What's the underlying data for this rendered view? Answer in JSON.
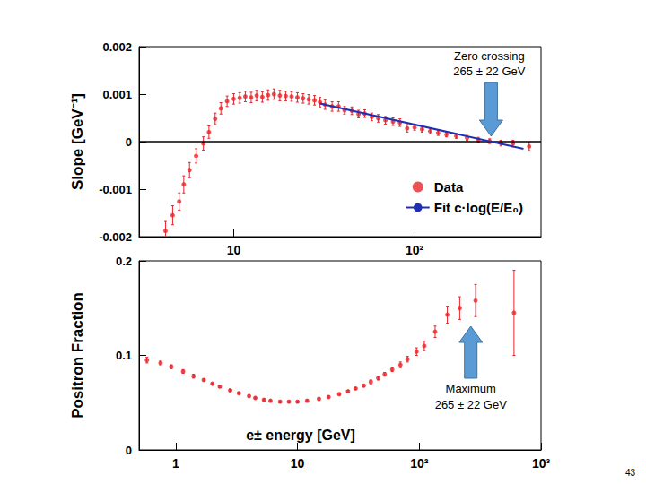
{
  "chart_data": [
    {
      "type": "scatter",
      "ylabel": "Slope [GeV⁻¹]",
      "log": "x",
      "grid": false,
      "legend": "lower right",
      "xlim": [
        3,
        500
      ],
      "xticks": [
        10,
        {
          "value": 100,
          "label": "10²"
        }
      ],
      "ylim": [
        -0.002,
        0.002
      ],
      "yticks": [
        -0.002,
        -0.001,
        0,
        0.001,
        0.002
      ],
      "hline": 0,
      "series": [
        {
          "name": "Data",
          "type": "scatter",
          "color": "#e8242a",
          "marker": "circle",
          "x": [
            4.2,
            4.6,
            5.0,
            5.3,
            5.7,
            6.2,
            6.8,
            7.3,
            7.9,
            8.5,
            9.2,
            10.0,
            10.8,
            11.6,
            12.5,
            13.4,
            14.4,
            15.5,
            16.7,
            18,
            19.4,
            20.9,
            22.5,
            24.2,
            26,
            28,
            30,
            32,
            35,
            38,
            41,
            45,
            49,
            53,
            58,
            63,
            69,
            76,
            83,
            91,
            100,
            110,
            122,
            135,
            150,
            170,
            195,
            225,
            260,
            300,
            350,
            430
          ],
          "values": [
            -0.00188,
            -0.00155,
            -0.00126,
            -0.0009,
            -0.0006,
            -0.0003,
            -4e-05,
            0.0002,
            0.00048,
            0.0007,
            0.00085,
            0.0009,
            0.00092,
            0.00095,
            0.00093,
            0.00097,
            0.00094,
            0.00098,
            0.001,
            0.00097,
            0.00096,
            0.00095,
            0.00093,
            0.00091,
            0.00089,
            0.00087,
            0.00083,
            0.00078,
            0.00074,
            0.00074,
            0.00066,
            0.00065,
            0.00058,
            0.00059,
            0.00052,
            0.00049,
            0.00045,
            0.00042,
            0.0004,
            0.00028,
            0.0003,
            0.00026,
            0.00022,
            0.00018,
            0.00015,
            0.00012,
            8e-05,
            4e-05,
            1e-05,
            -3e-05,
            -4e-05,
            -0.0001
          ],
          "errors": [
            0.0002,
            0.0002,
            0.00018,
            0.00018,
            0.00016,
            0.00015,
            0.00014,
            0.00013,
            0.00012,
            0.00012,
            0.00011,
            0.00011,
            0.00011,
            0.00011,
            0.00011,
            0.00011,
            0.00011,
            0.00011,
            0.00011,
            0.00011,
            0.0001,
            0.0001,
            0.0001,
            0.0001,
            0.0001,
            0.0001,
            0.0001,
            0.0001,
            0.0001,
            0.0001,
            8e-05,
            8e-05,
            8e-05,
            8e-05,
            8e-05,
            8e-05,
            8e-05,
            8e-05,
            8e-05,
            8e-05,
            6e-05,
            6e-05,
            6e-05,
            5e-05,
            5e-05,
            5e-05,
            5e-05,
            5e-05,
            5e-05,
            6e-05,
            7e-05,
            9e-05
          ]
        },
        {
          "name": "Fit c·log(E/E₀)",
          "type": "line",
          "color": "#1f2fb5",
          "line_style": "solid",
          "x": [
            30,
            400
          ],
          "values": [
            0.0008,
            -0.00015
          ]
        }
      ],
      "annotation": {
        "text": [
          "Zero crossing",
          "265 ± 22 GeV"
        ],
        "x": 265
      }
    },
    {
      "type": "scatter",
      "ylabel": "Positron Fraction",
      "xlabel": "e± energy [GeV]",
      "log": "x",
      "grid": false,
      "xlim": [
        0.5,
        1000
      ],
      "xticks": [
        1,
        10,
        {
          "value": 100,
          "label": "10²"
        },
        {
          "value": 1000,
          "label": "10³"
        }
      ],
      "ylim": [
        0,
        0.2
      ],
      "yticks": [
        0,
        0.1,
        0.2
      ],
      "series": [
        {
          "type": "scatter",
          "color": "#e8242a",
          "marker": "circle",
          "x": [
            0.58,
            0.75,
            0.92,
            1.15,
            1.4,
            1.7,
            2.0,
            2.3,
            2.8,
            3.3,
            4.0,
            4.5,
            5.3,
            6.0,
            7.2,
            8.5,
            10,
            12,
            15,
            18,
            22,
            26,
            30,
            35,
            40,
            46,
            52,
            60,
            70,
            80,
            95,
            110,
            135,
            170,
            215,
            290,
            600
          ],
          "values": [
            0.095,
            0.092,
            0.088,
            0.083,
            0.078,
            0.074,
            0.07,
            0.067,
            0.063,
            0.06,
            0.057,
            0.055,
            0.053,
            0.052,
            0.051,
            0.051,
            0.051,
            0.052,
            0.054,
            0.056,
            0.059,
            0.062,
            0.065,
            0.068,
            0.072,
            0.076,
            0.08,
            0.085,
            0.09,
            0.096,
            0.104,
            0.11,
            0.125,
            0.143,
            0.15,
            0.158,
            0.145
          ],
          "errors": [
            0.003,
            0.002,
            0.002,
            0.002,
            0.002,
            0.001,
            0.001,
            0.001,
            0.001,
            0.001,
            0.001,
            0.001,
            0.001,
            0.001,
            0.001,
            0.001,
            0.001,
            0.001,
            0.001,
            0.001,
            0.001,
            0.001,
            0.001,
            0.001,
            0.002,
            0.002,
            0.002,
            0.002,
            0.003,
            0.003,
            0.004,
            0.005,
            0.006,
            0.009,
            0.012,
            0.017,
            0.045
          ]
        }
      ],
      "annotation": {
        "text": [
          "Maximum",
          "265 ± 22 GeV"
        ],
        "x": 265
      }
    }
  ],
  "page_number": "43"
}
